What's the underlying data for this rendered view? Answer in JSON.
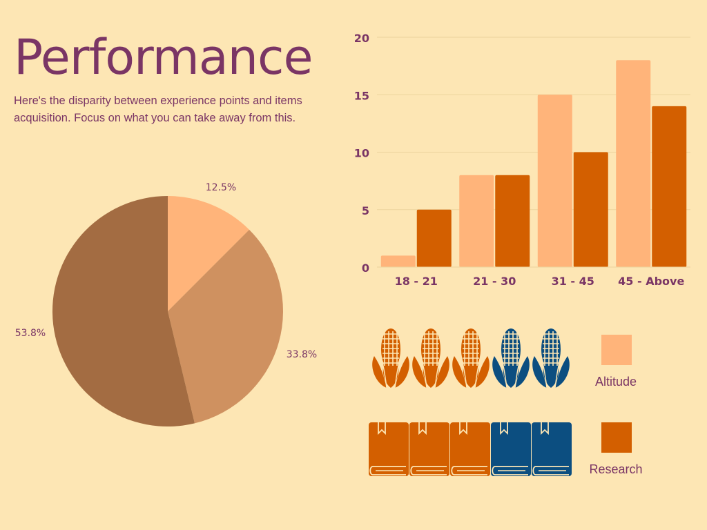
{
  "title": "Performance",
  "subtitle": "Here's the disparity between experience points and items acquisition. Focus on what you can take away from this.",
  "colors": {
    "background": "#fde6b4",
    "text": "#7a3565",
    "altitude": "#ffb47a",
    "research": "#d35f00",
    "pictogram_orange": "#d35f00",
    "pictogram_blue": "#0c4e80",
    "pie": [
      "#ffb47a",
      "#cf9160",
      "#a36c42"
    ]
  },
  "chart_data": [
    {
      "type": "pie",
      "labels": [
        "12.5%",
        "33.8%",
        "53.8%"
      ],
      "values": [
        12.5,
        33.8,
        53.8
      ]
    },
    {
      "type": "bar",
      "categories": [
        "18 - 21",
        "21 - 30",
        "31 - 45",
        "45 - Above"
      ],
      "series": [
        {
          "name": "Altitude",
          "values": [
            1,
            8,
            15,
            18
          ]
        },
        {
          "name": "Research",
          "values": [
            5,
            8,
            10,
            14
          ]
        }
      ],
      "ylim": [
        0,
        20
      ],
      "yticks": [
        0,
        5,
        10,
        15,
        20
      ],
      "grid": true
    }
  ],
  "pictograms": {
    "corn": {
      "icon": "corn-icon",
      "orange_count": 3,
      "blue_count": 2
    },
    "book": {
      "icon": "book-icon",
      "orange_count": 3,
      "blue_count": 2
    }
  },
  "legend": [
    {
      "label": "Altitude",
      "color": "#ffb47a"
    },
    {
      "label": "Research",
      "color": "#d35f00"
    }
  ]
}
